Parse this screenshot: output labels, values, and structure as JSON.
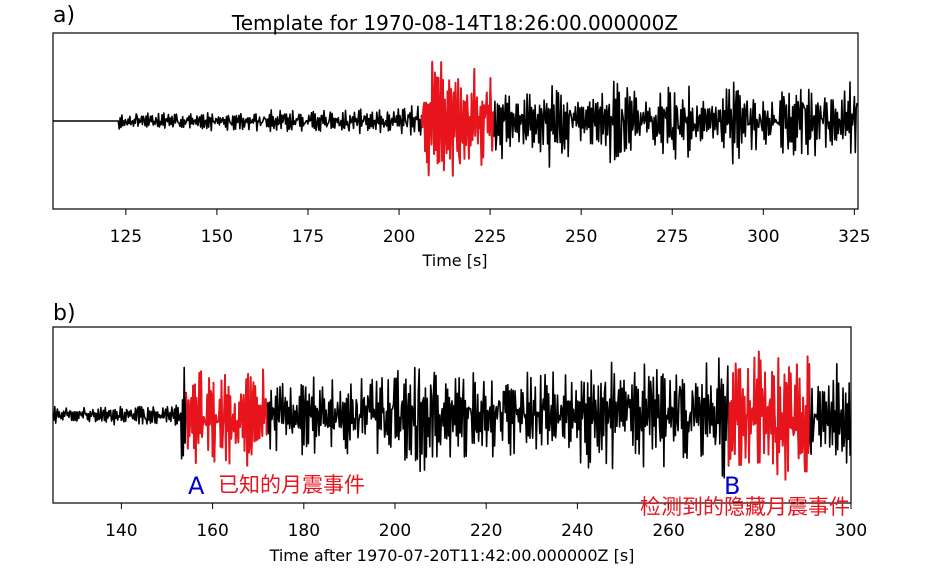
{
  "chart_data": [
    {
      "type": "line",
      "panel_label": "a)",
      "title": "Template for 1970-08-14T18:26:00.000000Z",
      "xlabel": "Time [s]",
      "ylabel": "",
      "xlim": [
        105,
        326
      ],
      "ylim": [
        -1.15,
        1.15
      ],
      "xticks": [
        125,
        150,
        175,
        200,
        225,
        250,
        275,
        300,
        325
      ],
      "grid": false,
      "series": [
        {
          "color": "#000000",
          "role": "waveform",
          "x_range": [
            105,
            326
          ]
        },
        {
          "color": "#e8141c",
          "role": "template-window",
          "x_range": [
            206,
            226
          ]
        }
      ],
      "annotations": []
    },
    {
      "type": "line",
      "panel_label": "b)",
      "title": "",
      "xlabel": "Time after 1970-07-20T11:42:00.000000Z [s]",
      "ylabel": "",
      "xlim": [
        125,
        300
      ],
      "ylim": [
        -1.15,
        1.15
      ],
      "xticks": [
        140,
        160,
        180,
        200,
        220,
        240,
        260,
        280,
        300
      ],
      "grid": false,
      "series": [
        {
          "color": "#000000",
          "role": "waveform",
          "x_range": [
            125,
            300
          ]
        },
        {
          "color": "#e8141c",
          "role": "detection-A",
          "x_range": [
            154,
            172
          ]
        },
        {
          "color": "#e8141c",
          "role": "detection-B",
          "x_range": [
            273,
            291
          ]
        }
      ],
      "annotations": [
        {
          "letter": "A",
          "text": "已知的月震事件",
          "x": 157
        },
        {
          "letter": "B",
          "text": "检测到的隐藏月震事件",
          "x": 273
        }
      ]
    }
  ]
}
